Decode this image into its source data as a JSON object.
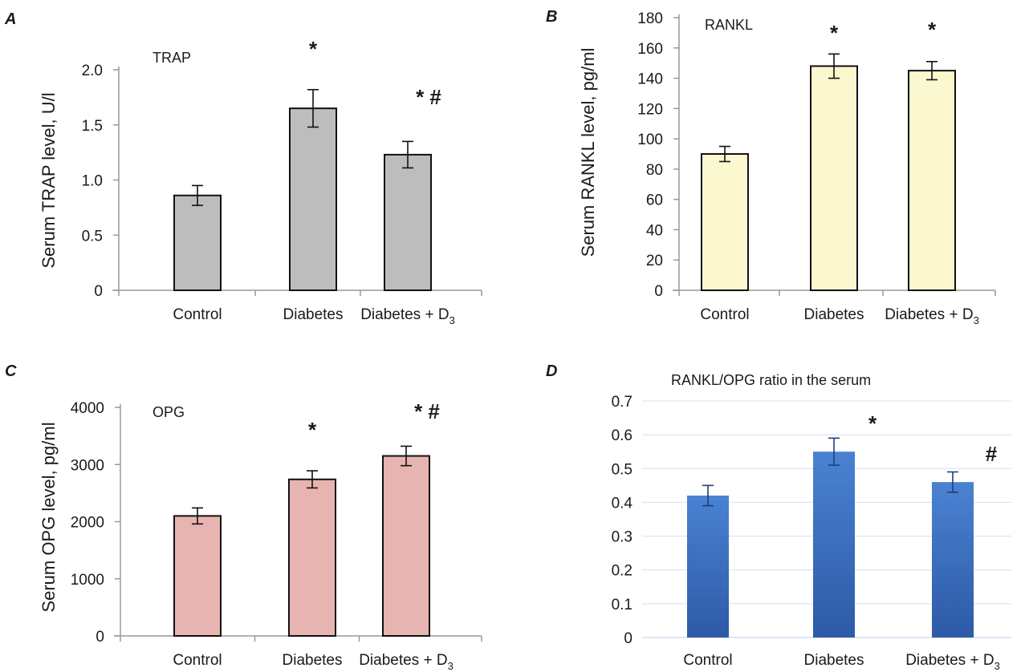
{
  "chart_data": [
    {
      "type": "bar",
      "panel": "A",
      "title": "TRAP",
      "ylabel": "Serum TRAP level, U/l",
      "xlabel": "",
      "categories": [
        "Control",
        "Diabetes",
        "Diabetes + D3"
      ],
      "values": [
        0.86,
        1.65,
        1.23
      ],
      "errors": [
        0.09,
        0.17,
        0.12
      ],
      "annotations": [
        "",
        "*",
        "* #"
      ],
      "ylim": [
        0,
        2.0
      ],
      "yticks": [
        "0",
        "0.5",
        "1.0",
        "1.5",
        "2.0"
      ],
      "grid": false,
      "bar_color": "#bdbdbd"
    },
    {
      "type": "bar",
      "panel": "B",
      "title": "RANKL",
      "ylabel": "Serum RANKL level, pg/ml",
      "xlabel": "",
      "categories": [
        "Control",
        "Diabetes",
        "Diabetes + D3"
      ],
      "values": [
        90,
        148,
        145
      ],
      "errors": [
        5,
        8,
        6
      ],
      "annotations": [
        "",
        "*",
        "*"
      ],
      "ylim": [
        0,
        180
      ],
      "yticks": [
        "0",
        "20",
        "40",
        "60",
        "80",
        "100",
        "120",
        "140",
        "160",
        "180"
      ],
      "grid": false,
      "bar_color": "#fbf7cf"
    },
    {
      "type": "bar",
      "panel": "C",
      "title": "OPG",
      "ylabel": "Serum OPG level, pg/ml",
      "xlabel": "",
      "categories": [
        "Control",
        "Diabetes",
        "Diabetes + D3"
      ],
      "values": [
        2100,
        2740,
        3150
      ],
      "errors": [
        140,
        150,
        170
      ],
      "annotations": [
        "",
        "*",
        "* #"
      ],
      "ylim": [
        0,
        4000
      ],
      "yticks": [
        "0",
        "1000",
        "2000",
        "3000",
        "4000"
      ],
      "grid": false,
      "bar_color": "#e8b4b1"
    },
    {
      "type": "bar",
      "panel": "D",
      "title": "RANKL/OPG ratio in the serum",
      "ylabel": "",
      "xlabel": "",
      "categories": [
        "Control",
        "Diabetes",
        "Diabetes + D3"
      ],
      "values": [
        0.42,
        0.55,
        0.46
      ],
      "errors": [
        0.03,
        0.04,
        0.03
      ],
      "annotations": [
        "",
        "*",
        "#"
      ],
      "ylim": [
        0,
        0.7
      ],
      "yticks": [
        "0",
        "0.1",
        "0.2",
        "0.3",
        "0.4",
        "0.5",
        "0.6",
        "0.7"
      ],
      "grid": true,
      "bar_color": "#3d73c4"
    }
  ]
}
